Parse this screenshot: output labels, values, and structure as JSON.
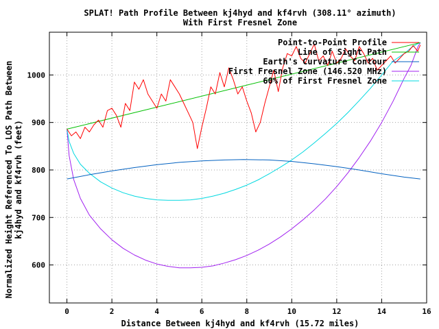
{
  "chart_data": {
    "type": "line",
    "title": "SPLAT! Path Profile Between kj4hyd and kf4rvh (308.11° azimuth)",
    "subtitle": "With First Fresnel Zone",
    "xlabel": "Distance Between kj4hyd and kf4rvh (15.72 miles)",
    "ylabel_line1": "Normalized Height Referenced To LOS Path Between",
    "ylabel_line2": "kj4hyd and kf4rvh (feet)",
    "xlim": [
      -0.78,
      16
    ],
    "ylim": [
      520,
      1090
    ],
    "xticks": [
      "0",
      "2",
      "4",
      "6",
      "8",
      "10",
      "12",
      "14",
      "16"
    ],
    "yticks": [
      "600",
      "700",
      "800",
      "900",
      "1000"
    ],
    "grid": true,
    "legend_position": "top-right",
    "series": [
      {
        "name": "Point-to-Point Profile",
        "color": "#ff0000",
        "x": [
          0,
          0.2,
          0.4,
          0.6,
          0.8,
          1.0,
          1.2,
          1.4,
          1.6,
          1.8,
          2.0,
          2.2,
          2.4,
          2.6,
          2.8,
          3.0,
          3.2,
          3.4,
          3.6,
          3.8,
          4.0,
          4.2,
          4.4,
          4.6,
          4.8,
          5.0,
          5.2,
          5.4,
          5.6,
          5.8,
          6.0,
          6.2,
          6.4,
          6.6,
          6.8,
          7.0,
          7.2,
          7.4,
          7.6,
          7.8,
          8.0,
          8.2,
          8.4,
          8.6,
          8.8,
          9.0,
          9.2,
          9.4,
          9.6,
          9.8,
          10.0,
          10.2,
          10.4,
          10.6,
          10.8,
          11.0,
          11.2,
          11.4,
          11.6,
          11.8,
          12.0,
          12.2,
          12.4,
          12.6,
          12.8,
          13.0,
          13.2,
          13.4,
          13.6,
          13.8,
          14.0,
          14.2,
          14.4,
          14.6,
          14.8,
          15.0,
          15.2,
          15.4,
          15.6,
          15.72
        ],
        "y": [
          886,
          872,
          880,
          866,
          890,
          880,
          895,
          905,
          890,
          925,
          930,
          915,
          890,
          940,
          925,
          985,
          970,
          990,
          960,
          945,
          930,
          960,
          945,
          990,
          975,
          960,
          940,
          920,
          900,
          845,
          890,
          930,
          975,
          960,
          1005,
          975,
          1015,
          990,
          960,
          975,
          945,
          920,
          880,
          900,
          940,
          975,
          1010,
          965,
          1015,
          1045,
          1040,
          1060,
          1035,
          1025,
          1045,
          1065,
          1030,
          1040,
          1020,
          1050,
          1025,
          1035,
          1055,
          1040,
          1030,
          1060,
          1045,
          1025,
          1035,
          1010,
          1020,
          1030,
          1040,
          1025,
          1035,
          1045,
          1050,
          1062,
          1050,
          1063
        ]
      },
      {
        "name": "Line of Sight Path",
        "color": "#00c000",
        "x": [
          0,
          15.72
        ],
        "y": [
          886,
          1068
        ]
      },
      {
        "name": "Earth's Curvature Contour",
        "color": "#0060c0",
        "x": [
          0,
          1,
          2,
          3,
          4,
          5,
          6,
          7,
          7.86,
          9,
          10,
          11,
          12,
          13,
          14,
          15,
          15.72
        ],
        "y": [
          781,
          790,
          798,
          805,
          811,
          816,
          819,
          821,
          822,
          821,
          818,
          813,
          807,
          800,
          792,
          785,
          781
        ]
      },
      {
        "name": "First Fresnel Zone (146.520 MHz)",
        "color": "#a020f0",
        "x": [
          0,
          0.1,
          0.3,
          0.6,
          1.0,
          1.5,
          2.0,
          2.5,
          3.0,
          3.5,
          4.0,
          4.5,
          5.0,
          5.5,
          6.0,
          6.5,
          7.0,
          7.5,
          8.0,
          8.5,
          9.0,
          9.5,
          10.0,
          10.5,
          11.0,
          11.5,
          12.0,
          12.5,
          13.0,
          13.5,
          14.0,
          14.5,
          15.0,
          15.3,
          15.5,
          15.62,
          15.72
        ],
        "y": [
          886,
          830,
          780,
          740,
          705,
          676,
          653,
          635,
          621,
          610,
          602,
          597,
          594,
          594,
          595,
          598,
          604,
          611,
          620,
          631,
          644,
          659,
          676,
          695,
          716,
          739,
          765,
          794,
          826,
          861,
          900,
          944,
          993,
          1020,
          1045,
          1060,
          1068
        ]
      },
      {
        "name": "60% of First Fresnel Zone",
        "color": "#00d8e0",
        "x": [
          0,
          0.1,
          0.3,
          0.6,
          1.0,
          1.5,
          2.0,
          2.5,
          3.0,
          3.5,
          4.0,
          4.5,
          5.0,
          5.5,
          6.0,
          6.5,
          7.0,
          7.5,
          8.0,
          8.5,
          9.0,
          9.5,
          10.0,
          10.5,
          11.0,
          11.5,
          12.0,
          12.5,
          13.0,
          13.5,
          14.0,
          14.5,
          15.0,
          15.3,
          15.5,
          15.62,
          15.72
        ],
        "y": [
          886,
          860,
          835,
          812,
          793,
          775,
          762,
          752,
          745,
          740,
          737,
          736,
          736,
          737,
          740,
          745,
          751,
          759,
          768,
          779,
          792,
          806,
          821,
          838,
          857,
          877,
          898,
          921,
          946,
          972,
          1000,
          1029,
          1045,
          1057,
          1063,
          1066,
          1068
        ]
      }
    ]
  }
}
